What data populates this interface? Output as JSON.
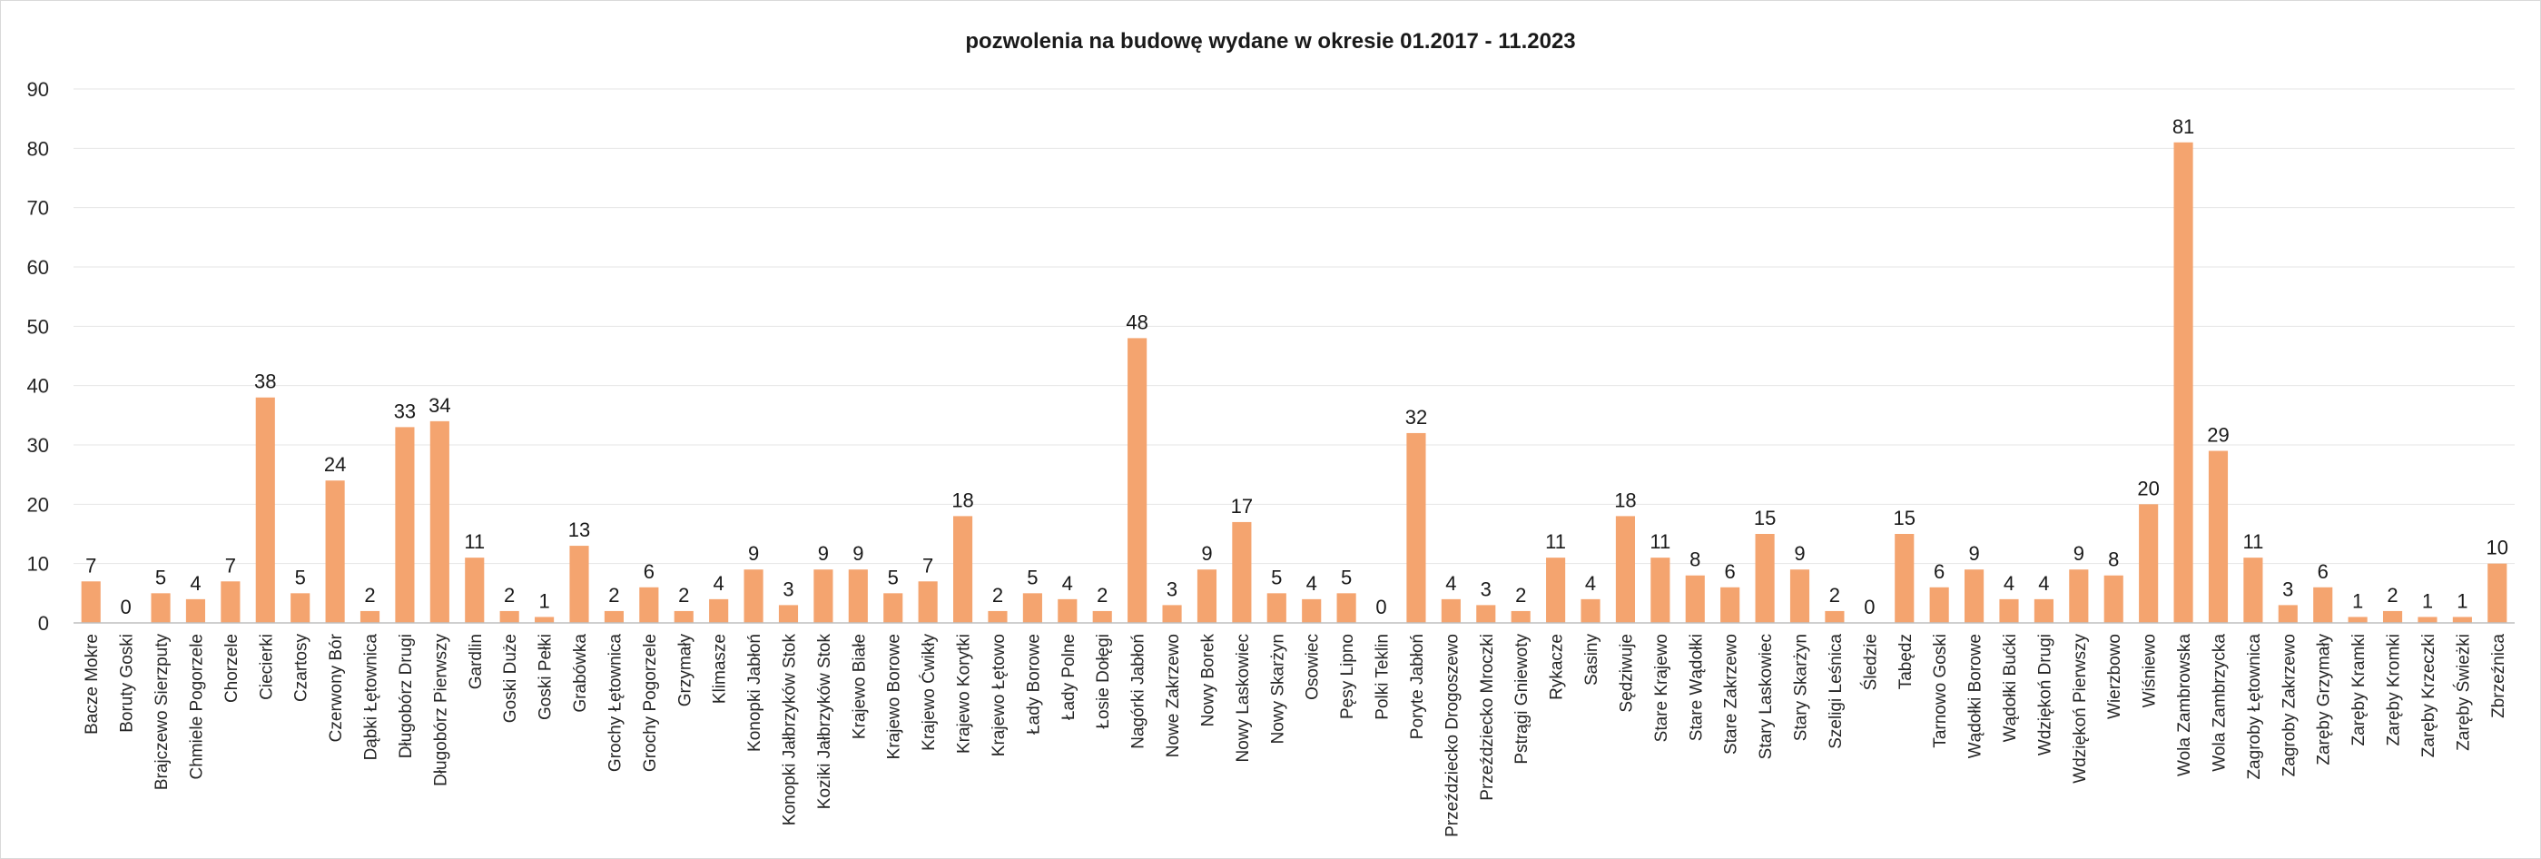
{
  "chart_data": {
    "type": "bar",
    "title": "pozwolenia na budowę wydane w okresie 01.2017 - 11.2023",
    "xlabel": "",
    "ylabel": "",
    "ylim": [
      0,
      90
    ],
    "yticks": [
      0,
      10,
      20,
      30,
      40,
      50,
      60,
      70,
      80,
      90
    ],
    "grid": true,
    "legend": "none",
    "bar_color": "#f4a46f",
    "grid_color": "#e6e6e6",
    "categories": [
      "Bacze Mokre",
      "Boruty Goski",
      "Brajczewo Sierzputy",
      "Chmiele Pogorzele",
      "Chorzele",
      "Ciecierki",
      "Czartosy",
      "Czerwony Bór",
      "Dąbki Łętownica",
      "Długobórz Drugi",
      "Długobórz Pierwszy",
      "Gardlin",
      "Goski Duże",
      "Goski Pełki",
      "Grabówka",
      "Grochy Łętownica",
      "Grochy Pogorzele",
      "Grzymały",
      "Klimasze",
      "Konopki Jabłoń",
      "Konopki Jałbrzyków Stok",
      "Koziki Jałbrzyków Stok",
      "Krajewo Białe",
      "Krajewo Borowe",
      "Krajewo Ćwikły",
      "Krajewo Korytki",
      "Krajewo Łętowo",
      "Łady Borowe",
      "Łady Polne",
      "Łosie Dołęgi",
      "Nagórki Jabłoń",
      "Nowe Zakrzewo",
      "Nowy Borek",
      "Nowy Laskowiec",
      "Nowy Skarżyn",
      "Osowiec",
      "Pęsy Lipno",
      "Polki Teklin",
      "Poryte Jabłoń",
      "Przeździecko Drogoszewo",
      "Przeździecko Mroczki",
      "Pstrągi Gniewoty",
      "Rykacze",
      "Sasiny",
      "Sędziwuje",
      "Stare Krajewo",
      "Stare Wądołki",
      "Stare Zakrzewo",
      "Stary Laskowiec",
      "Stary Skarżyn",
      "Szeligi Leśnica",
      "Śledzie",
      "Tabędz",
      "Tarnowo Goski",
      "Wądołki Borowe",
      "Wądołki Bućki",
      "Wdziękoń Drugi",
      "Wdziękoń Pierwszy",
      "Wierzbowo",
      "Wiśniewo",
      "Wola Zambrowska",
      "Wola Zambrzycka",
      "Zagroby Łętownica",
      "Zagroby Zakrzewo",
      "Zaręby Grzymały",
      "Zaręby Kramki",
      "Zaręby Kromki",
      "Zaręby Krzeczki",
      "Zaręby Świeżki",
      "Zbrzeźnica"
    ],
    "values": [
      7,
      0,
      5,
      4,
      7,
      38,
      5,
      24,
      2,
      33,
      34,
      11,
      2,
      1,
      13,
      2,
      6,
      2,
      4,
      9,
      3,
      9,
      9,
      5,
      7,
      18,
      2,
      5,
      4,
      2,
      48,
      3,
      9,
      17,
      5,
      4,
      5,
      0,
      32,
      4,
      3,
      2,
      11,
      4,
      18,
      11,
      8,
      6,
      15,
      9,
      2,
      0,
      15,
      6,
      9,
      4,
      4,
      9,
      8,
      20,
      81,
      29,
      11,
      3,
      6,
      1,
      2,
      1,
      1,
      10
    ]
  }
}
